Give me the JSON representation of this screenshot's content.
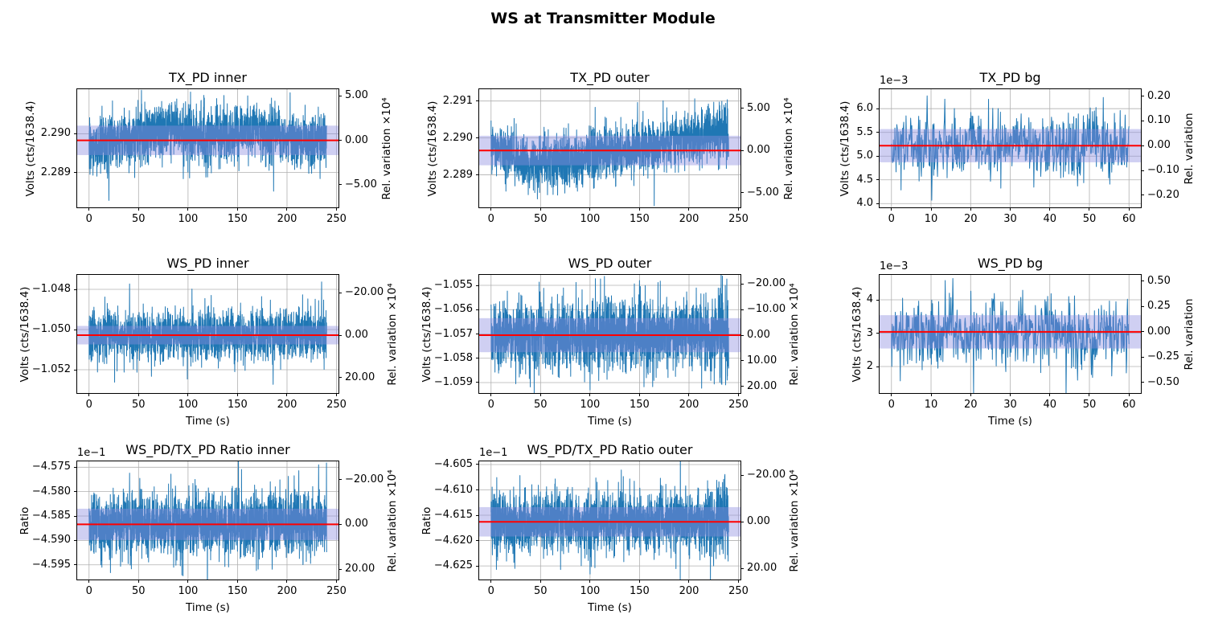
{
  "figure": {
    "title": "WS at Transmitter Module",
    "background": "#ffffff"
  },
  "colors": {
    "series": "#1f77b4",
    "mean_line": "#ff0000",
    "band_fill": "#8c8ce0",
    "band_opacity": 0.42,
    "grid": "#b0b0b0",
    "spine": "#000000",
    "text": "#000000"
  },
  "chart_data": [
    {
      "type": "line",
      "name": "tx-pd-inner",
      "title": "TX_PD inner",
      "offset_label": null,
      "xlabel": null,
      "ylabel_left": "Volts (cts/1638.4)",
      "ylabel_right": "Rel. variation ×10⁴",
      "xlim": [
        -12,
        252
      ],
      "xticks": {
        "values": [
          0,
          50,
          100,
          150,
          200,
          250
        ],
        "labels": [
          "0",
          "50",
          "100",
          "150",
          "200",
          "250"
        ]
      },
      "ylim": [
        2.2881,
        2.29115
      ],
      "yticks_left": {
        "values": [
          2.289,
          2.29
        ],
        "labels": [
          "2.289",
          "2.290"
        ]
      },
      "yticks_right": {
        "rel_values": [
          5,
          0,
          -5
        ],
        "labels": [
          "5.00",
          "0.00",
          "−5.00"
        ],
        "scale": 0.0001
      },
      "mean": 2.28983,
      "band_half": 0.00038,
      "x_data_max": 240,
      "n": 2000,
      "sigma": 0.00036,
      "amp_end": 1.0,
      "trend": [
        [
          0,
          -0.00012
        ],
        [
          40,
          0.00012
        ],
        [
          80,
          0.00028
        ],
        [
          120,
          0.00012
        ],
        [
          170,
          0.00026
        ],
        [
          215,
          -4e-05
        ],
        [
          240,
          2e-05
        ]
      ],
      "spikes": [
        {
          "x": 20,
          "dv": -0.00155
        },
        {
          "x": 118,
          "dv": -0.00095
        },
        {
          "x": 4,
          "dv": -0.0009
        }
      ],
      "seed": 101
    },
    {
      "type": "line",
      "name": "tx-pd-outer",
      "title": "TX_PD outer",
      "offset_label": null,
      "xlabel": null,
      "ylabel_left": "Volts (cts/1638.4)",
      "ylabel_right": "Rel. variation ×10⁴",
      "xlim": [
        -12,
        252
      ],
      "xticks": {
        "values": [
          0,
          50,
          100,
          150,
          200,
          250
        ],
        "labels": [
          "0",
          "50",
          "100",
          "150",
          "200",
          "250"
        ]
      },
      "ylim": [
        2.28812,
        2.29132
      ],
      "yticks_left": {
        "values": [
          2.289,
          2.29,
          2.291
        ],
        "labels": [
          "2.289",
          "2.290",
          "2.291"
        ]
      },
      "yticks_right": {
        "rel_values": [
          5,
          0,
          -5
        ],
        "labels": [
          "5.00",
          "0.00",
          "−5.00"
        ],
        "scale": 0.0001
      },
      "mean": 2.28966,
      "band_half": 0.0004,
      "x_data_max": 240,
      "n": 2000,
      "sigma": 0.00035,
      "amp_end": 1.35,
      "trend": [
        [
          0,
          0.00012
        ],
        [
          35,
          -0.00038
        ],
        [
          70,
          -0.00028
        ],
        [
          120,
          -8e-05
        ],
        [
          180,
          0.00022
        ],
        [
          225,
          0.00048
        ],
        [
          240,
          0.00055
        ]
      ],
      "spikes": [
        {
          "x": 57,
          "dv": -0.0012
        },
        {
          "x": 86,
          "dv": -0.001
        },
        {
          "x": 148,
          "dv": 0.0013
        }
      ],
      "seed": 202
    },
    {
      "type": "line",
      "name": "tx-pd-bg",
      "title": "TX_PD bg",
      "offset_label": "1e−3",
      "xlabel": null,
      "ylabel_left": "Volts (cts/1638.4)",
      "ylabel_right": "Rel. variation",
      "xlim": [
        -3,
        63
      ],
      "xticks": {
        "values": [
          0,
          10,
          20,
          30,
          40,
          50,
          60
        ],
        "labels": [
          "0",
          "10",
          "20",
          "30",
          "40",
          "50",
          "60"
        ]
      },
      "ylim": [
        3.92,
        6.41
      ],
      "yticks_left": {
        "values": [
          4.0,
          4.5,
          5.0,
          5.5,
          6.0
        ],
        "labels": [
          "4.0",
          "4.5",
          "5.0",
          "5.5",
          "6.0"
        ]
      },
      "yticks_right": {
        "rel_values": [
          0.2,
          0.1,
          0,
          -0.1,
          -0.2
        ],
        "labels": [
          "0.20",
          "0.10",
          "0.00",
          "−0.10",
          "−0.20"
        ],
        "scale": 1
      },
      "mean": 5.22,
      "band_half": 0.35,
      "x_data_max": 60,
      "n": 620,
      "sigma": 0.33,
      "amp_end": 1.0,
      "trend": [
        [
          0,
          0
        ],
        [
          60,
          0
        ]
      ],
      "spikes": [
        {
          "x": 9,
          "dv": 1.05
        },
        {
          "x": 10.2,
          "dv": -1.15
        },
        {
          "x": 13.5,
          "dv": 0.98
        },
        {
          "x": 47,
          "dv": -0.85
        }
      ],
      "seed": 303
    },
    {
      "type": "line",
      "name": "ws-pd-inner",
      "title": "WS_PD inner",
      "offset_label": null,
      "xlabel": "Time (s)",
      "ylabel_left": "Volts (cts/1638.4)",
      "ylabel_right": "Rel. variation ×10⁴",
      "xlim": [
        -12,
        252
      ],
      "xticks": {
        "values": [
          0,
          50,
          100,
          150,
          200,
          250
        ],
        "labels": [
          "0",
          "50",
          "100",
          "150",
          "200",
          "250"
        ]
      },
      "ylim": [
        -1.05316,
        -1.04728
      ],
      "yticks_left": {
        "values": [
          -1.048,
          -1.05,
          -1.052
        ],
        "labels": [
          "−1.048",
          "−1.050",
          "−1.052"
        ]
      },
      "yticks_right": {
        "rel_values": [
          -20,
          0,
          20
        ],
        "labels": [
          "−20.00",
          "0.00",
          "20.00"
        ],
        "scale": 0.0001
      },
      "mean": -1.05028,
      "band_half": 0.00046,
      "x_data_max": 240,
      "n": 2000,
      "sigma": 0.00062,
      "amp_end": 1.0,
      "trend": [
        [
          0,
          0
        ],
        [
          240,
          0
        ]
      ],
      "spikes": [
        {
          "x": 41,
          "dv": 0.00255
        },
        {
          "x": 186,
          "dv": -0.00245
        },
        {
          "x": 235,
          "dv": 0.00265
        },
        {
          "x": 63,
          "dv": -0.00205
        }
      ],
      "seed": 404
    },
    {
      "type": "line",
      "name": "ws-pd-outer",
      "title": "WS_PD outer",
      "offset_label": null,
      "xlabel": "Time (s)",
      "ylabel_left": "Volts (cts/1638.4)",
      "ylabel_right": "Rel. variation ×10⁴",
      "xlim": [
        -12,
        252
      ],
      "xticks": {
        "values": [
          0,
          50,
          100,
          150,
          200,
          250
        ],
        "labels": [
          "0",
          "50",
          "100",
          "150",
          "200",
          "250"
        ]
      },
      "ylim": [
        -1.05943,
        -1.05457
      ],
      "yticks_left": {
        "values": [
          -1.055,
          -1.056,
          -1.057,
          -1.058,
          -1.059
        ],
        "labels": [
          "−1.055",
          "−1.056",
          "−1.057",
          "−1.058",
          "−1.059"
        ]
      },
      "yticks_right": {
        "rel_values": [
          -20,
          -10,
          0,
          10,
          20
        ],
        "labels": [
          "−20.00",
          "−10.00",
          "0.00",
          "10.00",
          "20.00"
        ],
        "scale": 0.0001
      },
      "mean": -1.05705,
      "band_half": 0.0007,
      "x_data_max": 240,
      "n": 2000,
      "sigma": 0.00072,
      "amp_end": 1.3,
      "trend": [
        [
          0,
          0
        ],
        [
          240,
          0
        ]
      ],
      "spikes": [
        {
          "x": 100,
          "dv": -0.00225
        },
        {
          "x": 150,
          "dv": 0.00225
        },
        {
          "x": 25,
          "dv": -0.002
        }
      ],
      "seed": 505
    },
    {
      "type": "line",
      "name": "ws-pd-bg",
      "title": "WS_PD bg",
      "offset_label": "1e−3",
      "xlabel": "Time (s)",
      "ylabel_left": "Volts (cts/1638.4)",
      "ylabel_right": "Rel. variation",
      "xlim": [
        -3,
        63
      ],
      "xticks": {
        "values": [
          0,
          10,
          20,
          30,
          40,
          50,
          60
        ],
        "labels": [
          "0",
          "10",
          "20",
          "30",
          "40",
          "50",
          "60"
        ]
      },
      "ylim": [
        1.205,
        4.747
      ],
      "yticks_left": {
        "values": [
          2,
          3,
          4
        ],
        "labels": [
          "2",
          "3",
          "4"
        ]
      },
      "yticks_right": {
        "rel_values": [
          0.5,
          0.25,
          0,
          -0.25,
          -0.5
        ],
        "labels": [
          "0.50",
          "0.25",
          "0.00",
          "−0.25",
          "−0.50"
        ],
        "scale": 1
      },
      "mean": 3.04,
      "band_half": 0.5,
      "x_data_max": 60,
      "n": 620,
      "sigma": 0.48,
      "amp_end": 1.0,
      "trend": [
        [
          0,
          0
        ],
        [
          60,
          0
        ]
      ],
      "spikes": [
        {
          "x": 15.5,
          "dv": 1.6
        },
        {
          "x": 26,
          "dv": 1.15
        },
        {
          "x": 47,
          "dv": -1.45
        }
      ],
      "seed": 606
    },
    {
      "type": "line",
      "name": "ratio-inner",
      "title": "WS_PD/TX_PD Ratio inner",
      "offset_label": "1e−1",
      "xlabel": "Time (s)",
      "ylabel_left": "Ratio",
      "ylabel_right": "Rel. variation ×10⁴",
      "xlim": [
        -12,
        252
      ],
      "xticks": {
        "values": [
          0,
          50,
          100,
          150,
          200,
          250
        ],
        "labels": [
          "0",
          "50",
          "100",
          "150",
          "200",
          "250"
        ]
      },
      "ylim": [
        -4.598,
        -4.5738
      ],
      "yticks_left": {
        "values": [
          -4.575,
          -4.58,
          -4.585,
          -4.59,
          -4.595
        ],
        "labels": [
          "−4.575",
          "−4.580",
          "−4.585",
          "−4.590",
          "−4.595"
        ]
      },
      "yticks_right": {
        "rel_values": [
          -20,
          0,
          20
        ],
        "labels": [
          "−20.00",
          "0.00",
          "20.00"
        ],
        "scale": 0.0001
      },
      "mean": -4.5867,
      "band_half": 0.0032,
      "x_data_max": 240,
      "n": 2000,
      "sigma": 0.0031,
      "amp_end": 1.0,
      "trend": [
        [
          0,
          0
        ],
        [
          240,
          0
        ]
      ],
      "spikes": [
        {
          "x": 232,
          "dv": 0.0122
        },
        {
          "x": 13,
          "dv": -0.0088
        },
        {
          "x": 185,
          "dv": -0.0092
        },
        {
          "x": 41,
          "dv": 0.0105
        }
      ],
      "seed": 707
    },
    {
      "type": "line",
      "name": "ratio-outer",
      "title": "WS_PD/TX_PD Ratio outer",
      "offset_label": "1e−1",
      "xlabel": "Time (s)",
      "ylabel_left": "Ratio",
      "ylabel_right": "Rel. variation ×10⁴",
      "xlim": [
        -12,
        252
      ],
      "xticks": {
        "values": [
          0,
          50,
          100,
          150,
          200,
          250
        ],
        "labels": [
          "0",
          "50",
          "100",
          "150",
          "200",
          "250"
        ]
      },
      "ylim": [
        -4.62768,
        -4.60437
      ],
      "yticks_left": {
        "values": [
          -4.605,
          -4.61,
          -4.615,
          -4.62,
          -4.625
        ],
        "labels": [
          "−4.605",
          "−4.610",
          "−4.615",
          "−4.620",
          "−4.625"
        ]
      },
      "yticks_right": {
        "rel_values": [
          -20,
          0,
          20
        ],
        "labels": [
          "−20.00",
          "0.00",
          "20.00"
        ],
        "scale": 0.0001
      },
      "mean": -4.6163,
      "band_half": 0.0029,
      "x_data_max": 240,
      "n": 2000,
      "sigma": 0.003,
      "amp_end": 1.4,
      "trend": [
        [
          0,
          0
        ],
        [
          240,
          0
        ]
      ],
      "spikes": [
        {
          "x": 100,
          "dv": -0.0103
        },
        {
          "x": 228,
          "dv": 0.0082
        },
        {
          "x": 24,
          "dv": -0.0092
        }
      ],
      "seed": 808
    }
  ]
}
